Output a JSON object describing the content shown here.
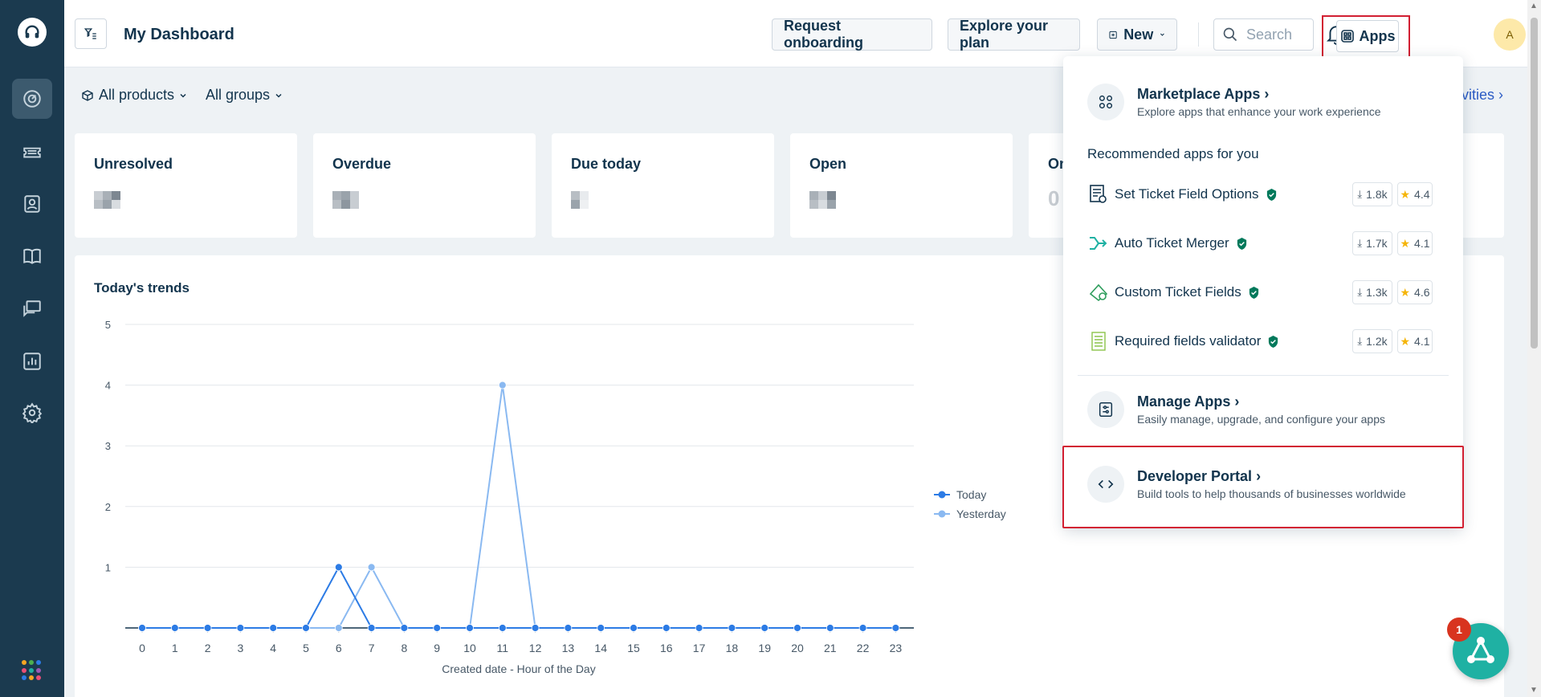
{
  "header": {
    "title": "My Dashboard",
    "request_onboarding": "Request onboarding",
    "explore_plan": "Explore your plan",
    "new_label": "New",
    "search_placeholder": "Search",
    "apps_label": "Apps",
    "avatar_initial": "A"
  },
  "filters": {
    "products": "All products",
    "groups": "All groups",
    "activities_partial": "vities"
  },
  "cards": [
    {
      "title": "Unresolved"
    },
    {
      "title": "Overdue"
    },
    {
      "title": "Due today"
    },
    {
      "title": "Open"
    },
    {
      "title": "On",
      "value_partial": "0"
    }
  ],
  "trends": {
    "title": "Today's trends"
  },
  "chart_data": {
    "type": "line",
    "title": "",
    "xlabel": "Created date - Hour of the Day",
    "ylabel": "",
    "ylim": [
      0,
      5
    ],
    "yticks": [
      "1",
      "2",
      "3",
      "4",
      "5"
    ],
    "categories": [
      "0",
      "1",
      "2",
      "3",
      "4",
      "5",
      "6",
      "7",
      "8",
      "9",
      "10",
      "11",
      "12",
      "13",
      "14",
      "15",
      "16",
      "17",
      "18",
      "19",
      "20",
      "21",
      "22",
      "23"
    ],
    "series": [
      {
        "name": "Today",
        "color": "#2c7be5",
        "values": [
          0,
          0,
          0,
          0,
          0,
          0,
          1,
          0,
          0,
          0,
          0,
          0,
          0,
          0,
          0,
          0,
          0,
          0,
          0,
          0,
          0,
          0,
          0,
          0
        ]
      },
      {
        "name": "Yesterday",
        "color": "#8ab9f1",
        "values": [
          0,
          0,
          0,
          0,
          0,
          0,
          0,
          1,
          0,
          0,
          0,
          4,
          0,
          0,
          0,
          0,
          0,
          0,
          0,
          0,
          0,
          0,
          0,
          0
        ]
      }
    ],
    "legend": "right"
  },
  "apps_menu": {
    "marketplace": {
      "title": "Marketplace Apps",
      "subtitle": "Explore apps that enhance your work experience"
    },
    "recommended_heading": "Recommended apps for you",
    "apps": [
      {
        "name": "Set Ticket Field Options",
        "downloads": "1.8k",
        "rating": "4.4"
      },
      {
        "name": "Auto Ticket Merger",
        "downloads": "1.7k",
        "rating": "4.1"
      },
      {
        "name": "Custom Ticket Fields",
        "downloads": "1.3k",
        "rating": "4.6"
      },
      {
        "name": "Required fields validator",
        "downloads": "1.2k",
        "rating": "4.1"
      }
    ],
    "manage": {
      "title": "Manage Apps",
      "subtitle": "Easily manage, upgrade, and configure your apps"
    },
    "developer": {
      "title": "Developer Portal",
      "subtitle": "Build tools to help thousands of businesses worldwide"
    }
  },
  "fab": {
    "badge": "1"
  },
  "colors": {
    "nav_bg": "#1b3a4f",
    "accent": "#2c5cc5",
    "teal": "#1fb1a3",
    "highlight": "#d21f32",
    "shield": "#00795b",
    "star": "#f5b50a"
  }
}
